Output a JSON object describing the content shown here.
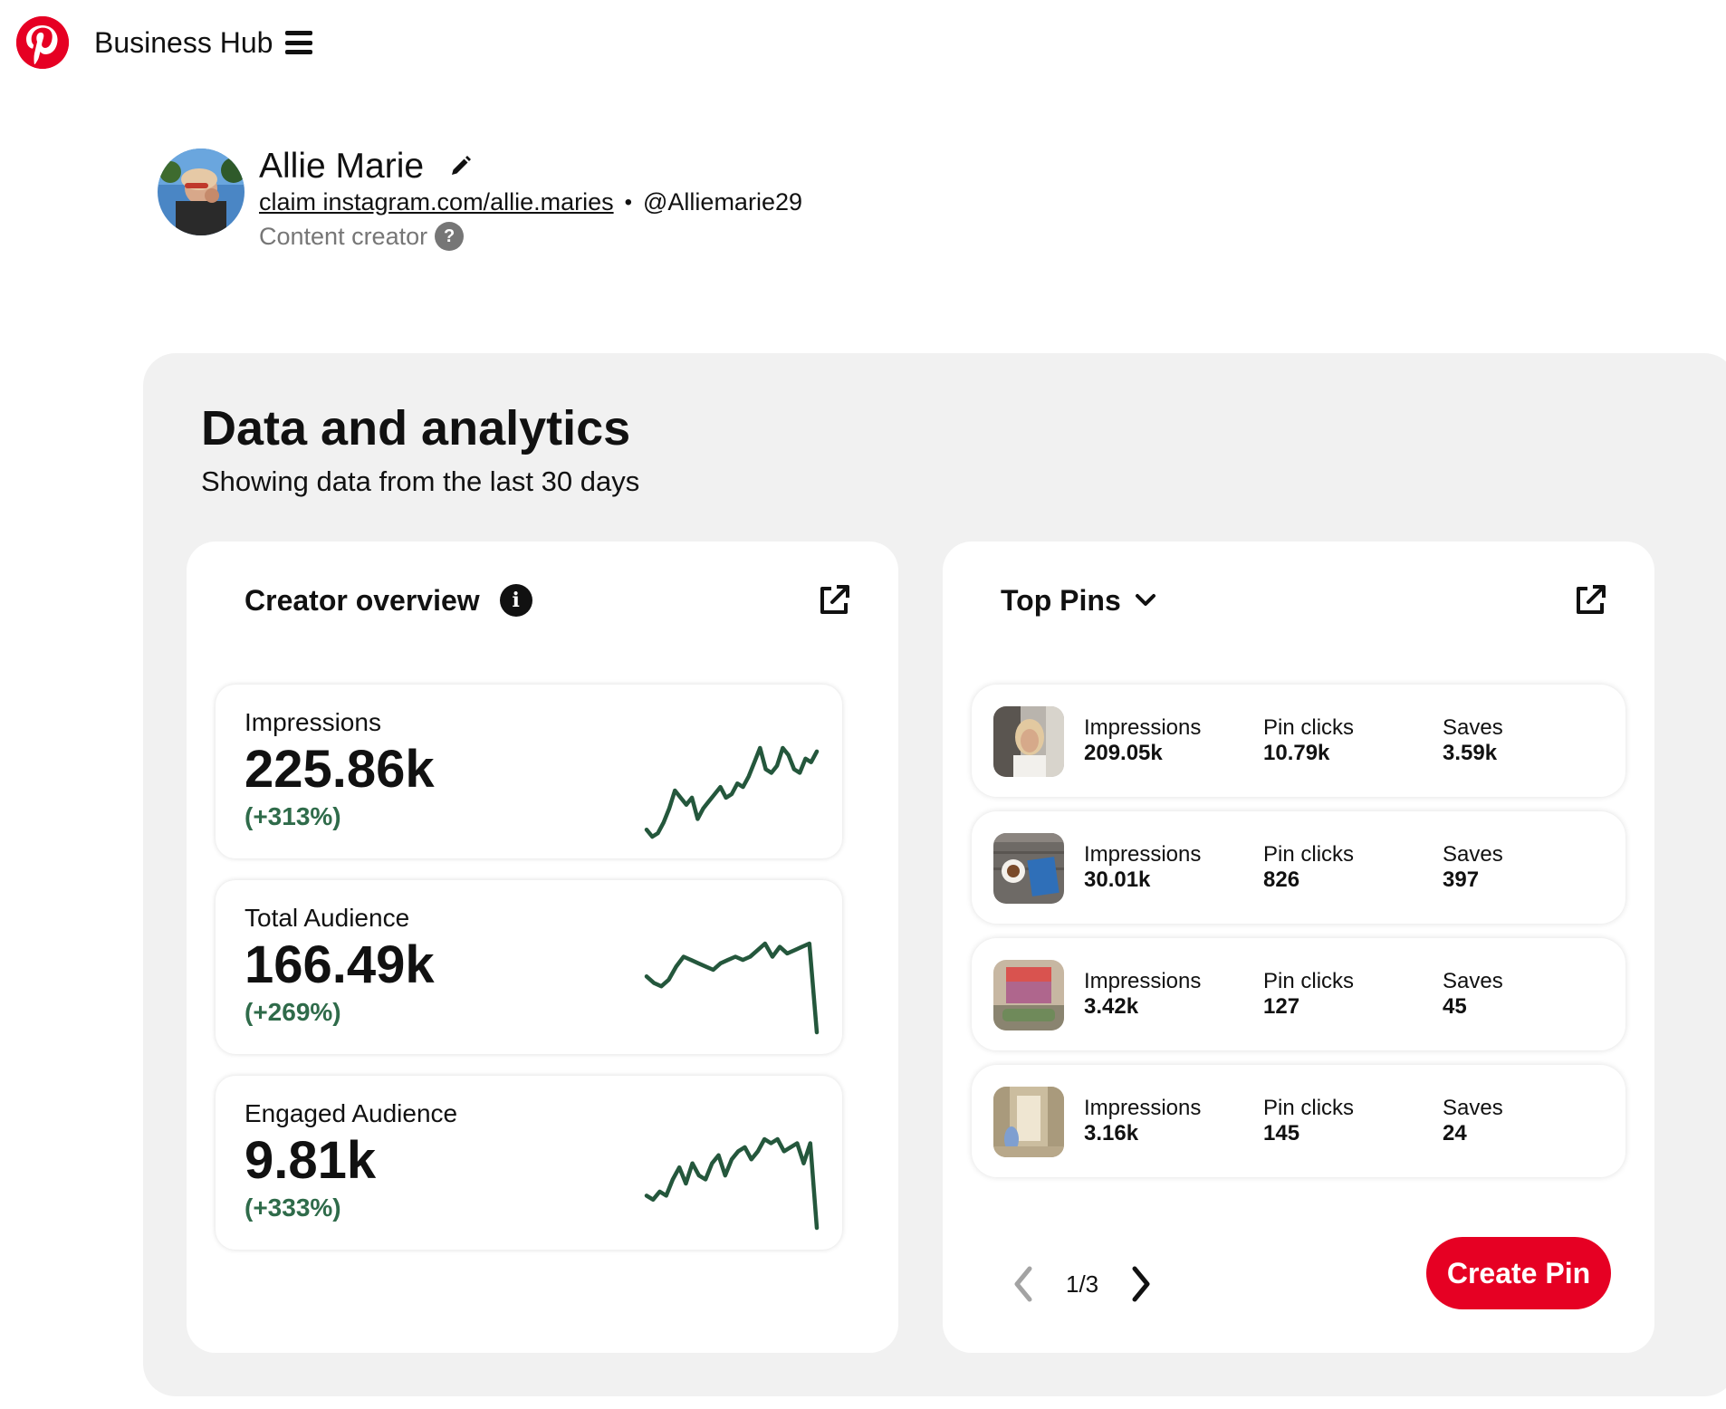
{
  "header": {
    "app_title": "Business Hub",
    "logo_icon": "pinterest-logo",
    "menu_icon": "hamburger-icon",
    "brand_color": "#e60023"
  },
  "profile": {
    "name": "Allie Marie",
    "claim_link": "claim instagram.com/allie.maries",
    "separator": "•",
    "handle": "@Alliemarie29",
    "role": "Content creator",
    "help_glyph": "?"
  },
  "analytics": {
    "title": "Data and analytics",
    "subtitle": "Showing data from the last 30 days",
    "positive_color": "#2f6b4a"
  },
  "creator_overview": {
    "title": "Creator overview",
    "info_glyph": "i",
    "metrics": [
      {
        "label": "Impressions",
        "value": "225.86k",
        "change": "(+313%)",
        "trend": [
          3,
          1,
          2,
          5,
          9,
          14,
          12,
          10,
          12,
          6,
          9,
          11,
          13,
          15,
          12,
          13,
          16,
          15,
          18,
          22,
          26,
          20,
          19,
          21,
          26,
          24,
          20,
          19,
          23,
          22,
          25
        ]
      },
      {
        "label": "Total Audience",
        "value": "166.49k",
        "change": "(+269%)",
        "trend": [
          20,
          18,
          17,
          19,
          23,
          26,
          25,
          24,
          23,
          22,
          24,
          25,
          26,
          25,
          26,
          28,
          30,
          26,
          29,
          27,
          28,
          29,
          30,
          3
        ]
      },
      {
        "label": "Engaged Audience",
        "value": "9.81k",
        "change": "(+333%)",
        "trend": [
          9,
          8,
          10,
          9,
          13,
          16,
          12,
          17,
          14,
          13,
          17,
          19,
          14,
          18,
          20,
          21,
          18,
          20,
          23,
          22,
          23,
          20,
          21,
          22,
          17,
          22,
          1
        ]
      }
    ]
  },
  "top_pins": {
    "title": "Top Pins",
    "pins": [
      {
        "impressions_label": "Impressions",
        "impressions": "209.05k",
        "clicks_label": "Pin clicks",
        "clicks": "10.79k",
        "saves_label": "Saves",
        "saves": "3.59k"
      },
      {
        "impressions_label": "Impressions",
        "impressions": "30.01k",
        "clicks_label": "Pin clicks",
        "clicks": "826",
        "saves_label": "Saves",
        "saves": "397"
      },
      {
        "impressions_label": "Impressions",
        "impressions": "3.42k",
        "clicks_label": "Pin clicks",
        "clicks": "127",
        "saves_label": "Saves",
        "saves": "45"
      },
      {
        "impressions_label": "Impressions",
        "impressions": "3.16k",
        "clicks_label": "Pin clicks",
        "clicks": "145",
        "saves_label": "Saves",
        "saves": "24"
      }
    ],
    "pagination": "1/3",
    "create_button": "Create Pin"
  }
}
